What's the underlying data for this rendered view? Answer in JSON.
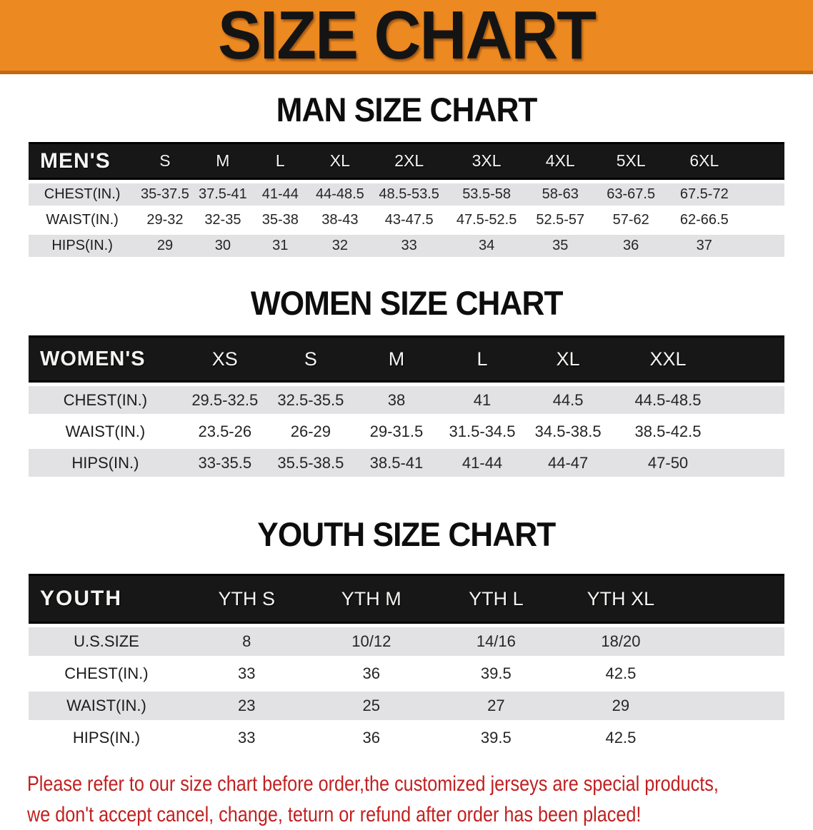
{
  "banner": {
    "title": "SIZE CHART"
  },
  "colors": {
    "banner_bg": "#ec8920",
    "banner_edge": "#bf6a12",
    "header_bar": "#171717",
    "stripe_gray": "#e2e2e4",
    "disclaimer_red": "#c12020"
  },
  "sections": [
    {
      "heading": "MAN SIZE CHART",
      "table": {
        "corner": "MEN'S",
        "columns": [
          "S",
          "M",
          "L",
          "XL",
          "2XL",
          "3XL",
          "4XL",
          "5XL",
          "6XL"
        ],
        "rows": [
          {
            "label": "CHEST(IN.)",
            "values": [
              "35-37.5",
              "37.5-41",
              "41-44",
              "44-48.5",
              "48.5-53.5",
              "53.5-58",
              "58-63",
              "63-67.5",
              "67.5-72"
            ]
          },
          {
            "label": "WAIST(IN.)",
            "values": [
              "29-32",
              "32-35",
              "35-38",
              "38-43",
              "43-47.5",
              "47.5-52.5",
              "52.5-57",
              "57-62",
              "62-66.5"
            ]
          },
          {
            "label": "HIPS(IN.)",
            "values": [
              "29",
              "30",
              "31",
              "32",
              "33",
              "34",
              "35",
              "36",
              "37"
            ]
          }
        ]
      }
    },
    {
      "heading": "WOMEN SIZE CHART",
      "table": {
        "corner": "WOMEN'S",
        "columns": [
          "XS",
          "S",
          "M",
          "L",
          "XL",
          "XXL"
        ],
        "rows": [
          {
            "label": "CHEST(IN.)",
            "values": [
              "29.5-32.5",
              "32.5-35.5",
              "38",
              "41",
              "44.5",
              "44.5-48.5"
            ]
          },
          {
            "label": "WAIST(IN.)",
            "values": [
              "23.5-26",
              "26-29",
              "29-31.5",
              "31.5-34.5",
              "34.5-38.5",
              "38.5-42.5"
            ]
          },
          {
            "label": "HIPS(IN.)",
            "values": [
              "33-35.5",
              "35.5-38.5",
              "38.5-41",
              "41-44",
              "44-47",
              "47-50"
            ]
          }
        ]
      }
    },
    {
      "heading": "YOUTH SIZE CHART",
      "table": {
        "corner": "YOUTH",
        "columns": [
          "YTH S",
          "YTH M",
          "YTH L",
          "YTH XL"
        ],
        "rows": [
          {
            "label": "U.S.SIZE",
            "values": [
              "8",
              "10/12",
              "14/16",
              "18/20"
            ]
          },
          {
            "label": "CHEST(IN.)",
            "values": [
              "33",
              "36",
              "39.5",
              "42.5"
            ]
          },
          {
            "label": "WAIST(IN.)",
            "values": [
              "23",
              "25",
              "27",
              "29"
            ]
          },
          {
            "label": "HIPS(IN.)",
            "values": [
              "33",
              "36",
              "39.5",
              "42.5"
            ]
          }
        ]
      }
    }
  ],
  "disclaimer": {
    "line1": "Please refer to our size chart before order,the customized jerseys are special products,",
    "line2": "we don't accept cancel, change, teturn or refund after order has been placed!"
  }
}
